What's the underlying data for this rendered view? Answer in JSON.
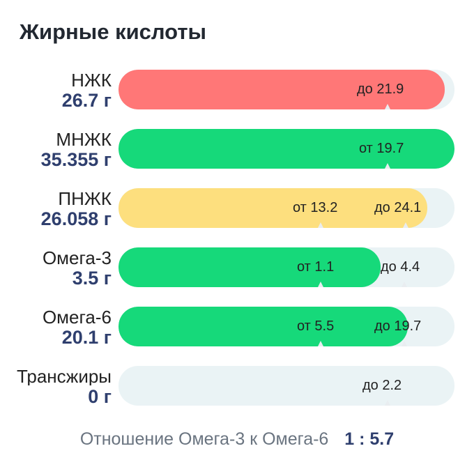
{
  "title": "Жирные кислоты",
  "colors": {
    "red": "#ff7777",
    "green": "#16d97a",
    "yellow": "#fddf7e",
    "track": "#eaf3f5",
    "amount": "#2f3f6e"
  },
  "rows": [
    {
      "name": "НЖК",
      "amount": "26.7 г",
      "fill_level": 0.97,
      "fill_color": "#ff7777",
      "marks": [
        {
          "text": "до 21.9"
        }
      ]
    },
    {
      "name": "МНЖК",
      "amount": "35.355 г",
      "fill_level": 1.0,
      "fill_color": "#16d97a",
      "marks": [
        {
          "text": "от 19.7"
        }
      ]
    },
    {
      "name": "ПНЖК",
      "amount": "26.058 г",
      "fill_level": 0.92,
      "fill_color": "#fddf7e",
      "marks": [
        {
          "text": "от 13.2"
        },
        {
          "text": "до 24.1"
        }
      ]
    },
    {
      "name": "Омега-3",
      "amount": "3.5 г",
      "fill_level": 0.78,
      "fill_color": "#16d97a",
      "marks": [
        {
          "text": "от 1.1"
        },
        {
          "text": "до 4.4"
        }
      ]
    },
    {
      "name": "Омега-6",
      "amount": "20.1 г",
      "fill_level": 0.86,
      "fill_color": "#16d97a",
      "marks": [
        {
          "text": "от 5.5"
        },
        {
          "text": "до 19.7"
        }
      ]
    },
    {
      "name": "Трансжиры",
      "amount": "0 г",
      "fill_level": 0,
      "fill_color": "#16d97a",
      "marks": [
        {
          "text": "до 2.2"
        }
      ]
    }
  ],
  "ratio": {
    "label": "Отношение Омега-3 к Омега-6",
    "value": "1 : 5.7"
  }
}
